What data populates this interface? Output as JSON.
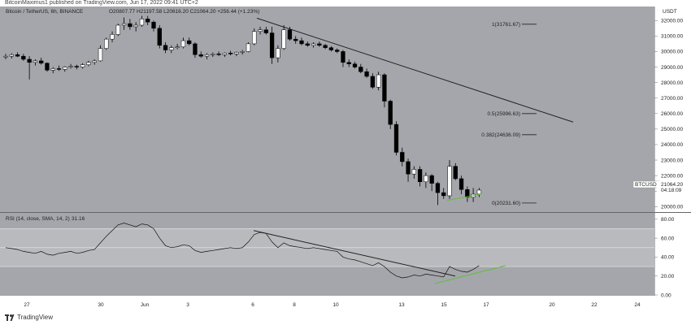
{
  "header": {
    "caption": "BitcoinMaximus1 published on TradingView.com, Jun 17, 2022 09:41 UTC+2"
  },
  "footer": {
    "brand": "TradingView"
  },
  "chart_data": {
    "type": "candlestick",
    "symbol": "Bitcoin / TetherUS, 6h, BINANCE",
    "ohlc_text": "O20807.77 H21197.58 L20616.20 C21064.20 +256.44 (+1.23%)",
    "currency": "USDT",
    "price_label": "BTCUSDT",
    "last_price": "21064.20",
    "countdown": "04:18:09",
    "x_labels": [
      "27",
      "30",
      "Jun",
      "3",
      "6",
      "8",
      "10",
      "13",
      "15",
      "17",
      "20",
      "22",
      "24"
    ],
    "y_ticks": [
      "32000.00",
      "31000.00",
      "30000.00",
      "29000.00",
      "28000.00",
      "27000.00",
      "26000.00",
      "25000.00",
      "24000.00",
      "23000.00",
      "22000.00",
      "21000.00",
      "20000.00"
    ],
    "ylim": [
      19700,
      32800
    ],
    "fib_levels": [
      {
        "label": "1(31761.67)",
        "value": 31761.67
      },
      {
        "label": "0.5(25996.63)",
        "value": 25996.63
      },
      {
        "label": "0.382(24636.09)",
        "value": 24636.09
      },
      {
        "label": "0(20231.60)",
        "value": 20231.6
      }
    ],
    "trendline": {
      "from": [
        0,
        32150
      ],
      "to": [
        70,
        25450
      ]
    },
    "support_line": {
      "from": [
        59.2,
        20400
      ],
      "to": [
        65,
        20800
      ]
    },
    "candles": [
      [
        29650,
        29850,
        29500,
        29700
      ],
      [
        29700,
        29900,
        29550,
        29800
      ],
      [
        29800,
        29950,
        29650,
        29700
      ],
      [
        29700,
        29850,
        29400,
        29500
      ],
      [
        29500,
        29700,
        28200,
        29300
      ],
      [
        29300,
        29500,
        29100,
        29400
      ],
      [
        29400,
        29600,
        29150,
        29250
      ],
      [
        29250,
        29300,
        28700,
        28800
      ],
      [
        28800,
        29000,
        28600,
        28900
      ],
      [
        28900,
        29100,
        28750,
        28850
      ],
      [
        28850,
        29050,
        28700,
        29000
      ],
      [
        29000,
        29200,
        28900,
        29050
      ],
      [
        29050,
        29150,
        28850,
        29000
      ],
      [
        29000,
        29250,
        28900,
        29150
      ],
      [
        29150,
        29400,
        29050,
        29300
      ],
      [
        29300,
        29500,
        29150,
        29400
      ],
      [
        29400,
        30400,
        29350,
        30200
      ],
      [
        30200,
        30900,
        30100,
        30800
      ],
      [
        30800,
        31300,
        30600,
        31100
      ],
      [
        31100,
        31800,
        31000,
        31700
      ],
      [
        31700,
        32200,
        31400,
        31800
      ],
      [
        31800,
        32100,
        31400,
        31600
      ],
      [
        31600,
        31900,
        31300,
        31700
      ],
      [
        31700,
        32300,
        31600,
        32100
      ],
      [
        32100,
        32300,
        31700,
        31900
      ],
      [
        31900,
        32000,
        31300,
        31500
      ],
      [
        31500,
        31700,
        30200,
        30400
      ],
      [
        30400,
        30600,
        29900,
        30100
      ],
      [
        30100,
        30400,
        29900,
        30250
      ],
      [
        30250,
        30500,
        30150,
        30300
      ],
      [
        30300,
        30900,
        30200,
        30700
      ],
      [
        30700,
        30900,
        30400,
        30500
      ],
      [
        30500,
        30600,
        29600,
        29800
      ],
      [
        29800,
        30000,
        29600,
        29700
      ],
      [
        29700,
        29900,
        29500,
        29800
      ],
      [
        29800,
        29950,
        29650,
        29850
      ],
      [
        29850,
        30000,
        29700,
        29800
      ],
      [
        29800,
        29950,
        29650,
        29900
      ],
      [
        29900,
        30050,
        29750,
        29850
      ],
      [
        29850,
        30000,
        29700,
        29950
      ],
      [
        29950,
        30100,
        29800,
        30000
      ],
      [
        30000,
        30600,
        29950,
        30500
      ],
      [
        30500,
        31500,
        30400,
        31300
      ],
      [
        31300,
        31600,
        31100,
        31400
      ],
      [
        31400,
        31600,
        31100,
        31200
      ],
      [
        31200,
        31600,
        29200,
        29600
      ],
      [
        29600,
        30400,
        29300,
        30200
      ],
      [
        30200,
        31700,
        30100,
        31400
      ],
      [
        31400,
        31600,
        30700,
        30800
      ],
      [
        30800,
        31000,
        30500,
        30700
      ],
      [
        30700,
        30900,
        30400,
        30500
      ],
      [
        30500,
        30650,
        30300,
        30400
      ],
      [
        30400,
        30600,
        30250,
        30500
      ],
      [
        30500,
        30650,
        30300,
        30400
      ],
      [
        30400,
        30500,
        30150,
        30250
      ],
      [
        30250,
        30350,
        30000,
        30100
      ],
      [
        30100,
        30200,
        29900,
        30000
      ],
      [
        30000,
        30100,
        29000,
        29300
      ],
      [
        29300,
        29500,
        29000,
        29200
      ],
      [
        29200,
        29350,
        28900,
        29000
      ],
      [
        29000,
        29200,
        28600,
        28700
      ],
      [
        28700,
        28900,
        28300,
        28400
      ],
      [
        28400,
        28600,
        27600,
        27700
      ],
      [
        27700,
        28700,
        27500,
        28500
      ],
      [
        28500,
        28600,
        26400,
        26800
      ],
      [
        26800,
        26900,
        25000,
        25300
      ],
      [
        25300,
        25500,
        23300,
        23500
      ],
      [
        23500,
        23800,
        22600,
        22900
      ],
      [
        22900,
        23100,
        21600,
        22100
      ],
      [
        22100,
        22600,
        21800,
        22400
      ],
      [
        22400,
        22600,
        21300,
        21600
      ],
      [
        21600,
        22200,
        21200,
        22000
      ],
      [
        22000,
        22100,
        21000,
        21500
      ],
      [
        21500,
        21600,
        20100,
        20900
      ],
      [
        20900,
        21200,
        20500,
        20700
      ],
      [
        20700,
        23000,
        20500,
        22600
      ],
      [
        22600,
        22800,
        21700,
        21800
      ],
      [
        21800,
        22000,
        20800,
        21100
      ],
      [
        21100,
        21300,
        20300,
        20600
      ],
      [
        20600,
        21200,
        20300,
        20800
      ],
      [
        20807.77,
        21197.58,
        20616.2,
        21064.2
      ]
    ],
    "rsi": {
      "legend": "RSI (14, close, SMA, 14, 2)",
      "value": "31.16",
      "ylim": [
        0,
        85
      ],
      "y_ticks": [
        "80.00",
        "60.00",
        "40.00",
        "20.00",
        "0.00"
      ],
      "values": [
        50,
        49,
        48,
        46,
        45,
        44,
        46,
        43,
        42,
        44,
        45,
        46,
        44,
        45,
        47,
        48,
        55,
        62,
        68,
        74,
        76,
        74,
        72,
        75,
        74,
        70,
        60,
        52,
        50,
        51,
        53,
        52,
        47,
        45,
        46,
        47,
        48,
        49,
        50,
        49,
        50,
        56,
        64,
        66,
        65,
        56,
        50,
        55,
        52,
        51,
        50,
        49,
        50,
        49,
        48,
        47,
        46,
        40,
        38,
        37,
        35,
        33,
        31,
        34,
        30,
        24,
        20,
        18,
        19,
        21,
        20,
        22,
        21,
        20,
        19,
        30,
        27,
        25,
        24,
        27,
        31
      ]
    }
  }
}
